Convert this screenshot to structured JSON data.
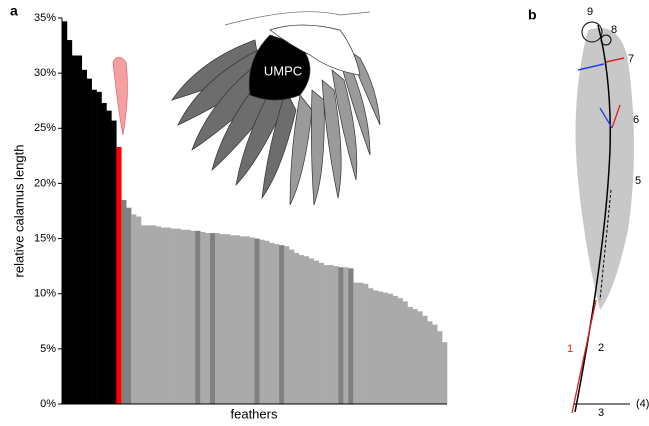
{
  "chart_data": {
    "type": "bar",
    "panel_labels": [
      "a",
      "b"
    ],
    "ylabel": "relative calamus length",
    "xlabel": "feathers",
    "annotation": "UMPC",
    "feather_labels": [
      "1",
      "2",
      "3",
      "(4)",
      "5",
      "6",
      "7",
      "8",
      "9"
    ],
    "ylim": [
      0,
      35
    ],
    "yticks": [
      {
        "value": 0,
        "label": "0%"
      },
      {
        "value": 5,
        "label": "5%"
      },
      {
        "value": 10,
        "label": "10%"
      },
      {
        "value": 15,
        "label": "15%"
      },
      {
        "value": 20,
        "label": "20%"
      },
      {
        "value": 25,
        "label": "25%"
      },
      {
        "value": 30,
        "label": "30%"
      },
      {
        "value": 35,
        "label": "35%"
      }
    ],
    "categories": [
      null,
      null,
      null,
      null,
      null,
      null,
      null,
      null,
      null,
      null,
      null,
      null,
      null,
      null,
      null,
      null,
      null,
      null,
      null,
      null,
      null,
      null,
      null,
      null,
      null,
      null,
      null,
      null,
      null,
      null,
      null,
      null,
      null,
      null,
      null,
      null,
      null,
      null,
      null,
      null,
      null,
      null,
      null,
      null,
      null,
      null,
      null,
      null,
      null,
      null,
      null,
      null,
      null,
      null,
      null,
      null,
      null,
      null,
      null,
      null,
      null,
      null,
      null,
      null,
      null,
      null,
      null,
      null,
      null,
      null,
      null,
      null,
      null,
      null,
      null,
      null,
      null,
      null
    ],
    "values": [
      34.7,
      33.0,
      31.6,
      31.6,
      30.3,
      29.5,
      28.5,
      28.3,
      27.3,
      26.6,
      25.7,
      23.3,
      18.5,
      17.8,
      17.2,
      17.0,
      16.2,
      16.2,
      16.2,
      16.1,
      16.0,
      16.0,
      15.9,
      15.9,
      15.8,
      15.8,
      15.7,
      15.7,
      15.6,
      15.5,
      15.5,
      15.5,
      15.4,
      15.4,
      15.3,
      15.3,
      15.2,
      15.2,
      15.1,
      15.0,
      14.9,
      14.8,
      14.6,
      14.5,
      14.4,
      14.3,
      14.0,
      13.7,
      13.5,
      13.4,
      13.2,
      13.0,
      12.8,
      12.6,
      12.6,
      12.5,
      12.4,
      12.4,
      12.3,
      11.0,
      11.0,
      10.9,
      10.5,
      10.3,
      10.2,
      10.1,
      10.0,
      9.8,
      9.6,
      9.3,
      8.8,
      8.6,
      8.4,
      8.0,
      7.5,
      7.2,
      6.6,
      5.6
    ],
    "colors": [
      "#000000",
      "#000000",
      "#000000",
      "#000000",
      "#000000",
      "#000000",
      "#000000",
      "#000000",
      "#000000",
      "#000000",
      "#000000",
      "#ff0000",
      "#808080",
      "#808080",
      "#aaaaaa",
      "#aaaaaa",
      "#aaaaaa",
      "#aaaaaa",
      "#aaaaaa",
      "#aaaaaa",
      "#aaaaaa",
      "#aaaaaa",
      "#aaaaaa",
      "#aaaaaa",
      "#aaaaaa",
      "#aaaaaa",
      "#aaaaaa",
      "#808080",
      "#aaaaaa",
      "#aaaaaa",
      "#808080",
      "#aaaaaa",
      "#aaaaaa",
      "#aaaaaa",
      "#aaaaaa",
      "#aaaaaa",
      "#aaaaaa",
      "#aaaaaa",
      "#aaaaaa",
      "#808080",
      "#aaaaaa",
      "#aaaaaa",
      "#aaaaaa",
      "#aaaaaa",
      "#808080",
      "#aaaaaa",
      "#aaaaaa",
      "#aaaaaa",
      "#aaaaaa",
      "#aaaaaa",
      "#aaaaaa",
      "#aaaaaa",
      "#aaaaaa",
      "#aaaaaa",
      "#aaaaaa",
      "#aaaaaa",
      "#808080",
      "#aaaaaa",
      "#808080",
      "#aaaaaa",
      "#aaaaaa",
      "#aaaaaa",
      "#aaaaaa",
      "#aaaaaa",
      "#aaaaaa",
      "#aaaaaa",
      "#aaaaaa",
      "#aaaaaa",
      "#aaaaaa",
      "#aaaaaa",
      "#aaaaaa",
      "#aaaaaa",
      "#aaaaaa",
      "#aaaaaa",
      "#aaaaaa",
      "#aaaaaa",
      "#aaaaaa",
      "#aaaaaa"
    ]
  }
}
